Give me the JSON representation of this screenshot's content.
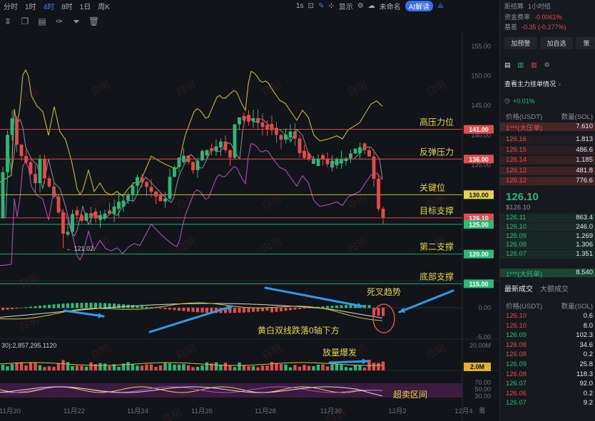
{
  "toolbar": {
    "intervals": [
      "分时",
      "1时",
      "4时",
      "8时",
      "1日",
      "周K"
    ],
    "active_interval": "4时",
    "right_items": {
      "interval_1s": "1s",
      "display": "显示",
      "unnamed": "未命名",
      "ai": "AI解读"
    }
  },
  "chart_data": {
    "type": "candlestick",
    "price_axis": {
      "ticks": [
        "155.00",
        "150.00",
        "145.00",
        "140.00",
        "135.00",
        "130.00",
        "125.00"
      ],
      "ylim": [
        116,
        157.5
      ]
    },
    "macd_axis": {
      "ticks": [
        "0.00",
        "-5.00"
      ]
    },
    "vol_axis": {
      "ticks": [
        "20.00M",
        "2.0M"
      ]
    },
    "rsi_axis": {
      "ticks": [
        "70.00",
        "50.00",
        "30.00"
      ]
    },
    "time_axis": [
      "11月20",
      "11月22",
      "11月24",
      "11月26",
      "11月28",
      "11月30",
      "12月2",
      "12月4"
    ],
    "time_axis_tail": "筹",
    "vol_label": "30):2,857,295.1120",
    "levels": [
      {
        "price": 141,
        "label": "141.00",
        "color": "#e04d4d",
        "note": "高压力位"
      },
      {
        "price": 136,
        "label": "136.00",
        "color": "#e04d4d",
        "note": "反弹压力"
      },
      {
        "price": 130,
        "label": "130.00",
        "color": "#e5d44a",
        "note": "关键位"
      },
      {
        "price": 126.1,
        "label": "126.10",
        "color": "#e04d4d",
        "note": "目标支撑"
      },
      {
        "price": 125,
        "label": "125.00",
        "color": "#2db87a",
        "note": ""
      },
      {
        "price": 120,
        "label": "120.00",
        "color": "#2db87a",
        "note": "第二支撑"
      },
      {
        "price": 115,
        "label": "115.00",
        "color": "#2db87a",
        "note": "底部支撑"
      }
    ],
    "low_marker": "121.02",
    "annotations": {
      "death_cross": "死叉趋势",
      "macd_below": "黄白双线跌落0轴下方",
      "vol_burst": "放量爆发",
      "oversold": "超卖区间"
    }
  },
  "panel": {
    "countdown_label": "距结算",
    "countdown_value": "1小时结",
    "funding_label": "资金费率",
    "funding_value": "-0.0061%",
    "basis_label": "基差",
    "basis_value": "-0.35 (-0.277%)",
    "btn_alert": "加预警",
    "btn_watch": "加自选",
    "btn_more": "策",
    "main_orders": "查看主力挂单情况",
    "tick_value": "+0.01%",
    "ob_header_price": "价格(USDT)",
    "ob_header_qty": "数量(SOL)",
    "ask_top": "1***(大压单)",
    "ask_top_qty": "7.610",
    "asks": [
      [
        "126.16",
        "1.813"
      ],
      [
        "126.15",
        "486.6"
      ],
      [
        "126.14",
        "1.185"
      ],
      [
        "126.13",
        "481.8"
      ],
      [
        "126.12",
        "776.6"
      ]
    ],
    "last_price": "126.10",
    "mark_price": "$126.10",
    "bids": [
      [
        "126.11",
        "863.4"
      ],
      [
        "126.10",
        "246.0"
      ],
      [
        "126.09",
        "1.269"
      ],
      [
        "126.08",
        "1.306"
      ],
      [
        "126.07",
        "1.351"
      ]
    ],
    "bid_top": "1***(大托单)",
    "bid_top_qty": "8.540",
    "tab_latest": "最新成交",
    "tab_big": "大额成交",
    "trades_header_price": "价格(USDT)",
    "trades_header_qty": "数量(SOL)",
    "trades": [
      [
        "126.10",
        "0.6",
        "r"
      ],
      [
        "126.10",
        "8.0",
        "r"
      ],
      [
        "126.09",
        "102.3",
        "g"
      ],
      [
        "126.08",
        "34.6",
        "r"
      ],
      [
        "126.08",
        "0.2",
        "r"
      ],
      [
        "126.09",
        "25.8",
        "g"
      ],
      [
        "126.08",
        "118.3",
        "r"
      ],
      [
        "126.07",
        "92.0",
        "g"
      ],
      [
        "126.06",
        "0.2",
        "r"
      ],
      [
        "126.07",
        "9.2",
        "g"
      ]
    ]
  },
  "watermark": "白玥"
}
